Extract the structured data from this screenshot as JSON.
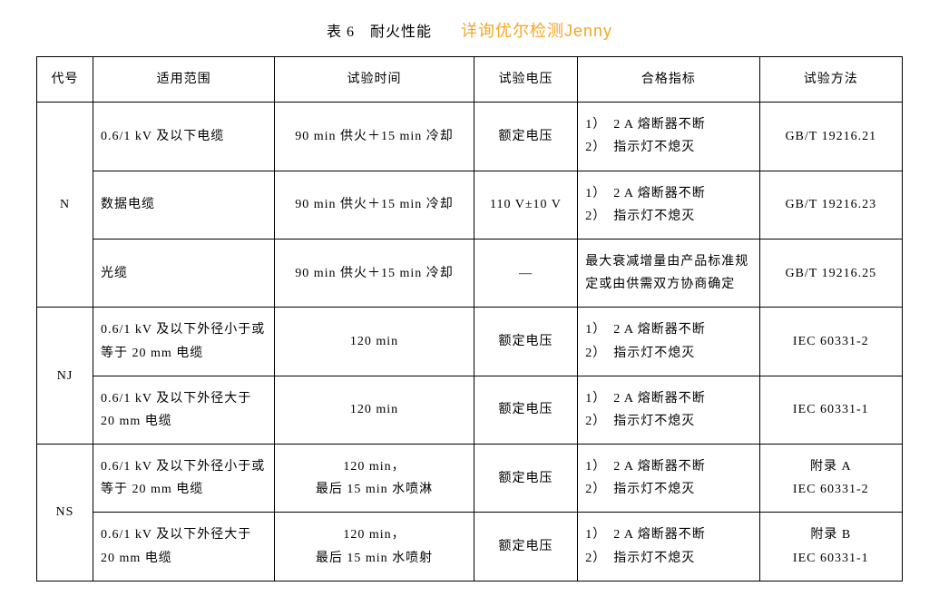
{
  "title": {
    "prefix": "表 6",
    "text": "耐火性能",
    "note": "详询优尔检测Jenny",
    "note_color": "#f5a623"
  },
  "headers": {
    "code": "代号",
    "scope": "适用范围",
    "time": "试验时间",
    "voltage": "试验电压",
    "criteria": "合格指标",
    "method": "试验方法"
  },
  "criteria_common": {
    "line1": "1）　2 A 熔断器不断",
    "line2": "2）　指示灯不熄灭"
  },
  "groups": [
    {
      "code": "N",
      "rows": [
        {
          "scope": "0.6/1 kV 及以下电缆",
          "time": "90 min 供火＋15 min 冷却",
          "voltage": "额定电压",
          "criteria": [
            "1）　2 A 熔断器不断",
            "2）　指示灯不熄灭"
          ],
          "method": "GB/T 19216.21"
        },
        {
          "scope": "数据电缆",
          "time": "90 min 供火＋15 min 冷却",
          "voltage": "110 V±10 V",
          "criteria": [
            "1）　2 A 熔断器不断",
            "2）　指示灯不熄灭"
          ],
          "method": "GB/T 19216.23"
        },
        {
          "scope": "光缆",
          "time": "90 min 供火＋15 min 冷却",
          "voltage": "—",
          "criteria": [
            "最大衰减增量由产品标准规定或由供需双方协商确定"
          ],
          "method": "GB/T 19216.25"
        }
      ]
    },
    {
      "code": "NJ",
      "rows": [
        {
          "scope": "0.6/1 kV 及以下外径小于或等于 20 mm 电缆",
          "time": "120 min",
          "voltage": "额定电压",
          "criteria": [
            "1）　2 A 熔断器不断",
            "2）　指示灯不熄灭"
          ],
          "method": "IEC 60331-2"
        },
        {
          "scope": "0.6/1 kV 及以下外径大于 20 mm 电缆",
          "time": "120 min",
          "voltage": "额定电压",
          "criteria": [
            "1）　2 A 熔断器不断",
            "2）　指示灯不熄灭"
          ],
          "method": "IEC 60331-1"
        }
      ]
    },
    {
      "code": "NS",
      "rows": [
        {
          "scope": "0.6/1 kV 及以下外径小于或等于 20 mm 电缆",
          "time": "120 min，\n最后 15 min 水喷淋",
          "voltage": "额定电压",
          "criteria": [
            "1）　2 A 熔断器不断",
            "2）　指示灯不熄灭"
          ],
          "method": "附录 A\nIEC 60331-2"
        },
        {
          "scope": "0.6/1 kV 及以下外径大于 20 mm 电缆",
          "time": "120 min，\n最后 15 min 水喷射",
          "voltage": "额定电压",
          "criteria": [
            "1）　2 A 熔断器不断",
            "2）　指示灯不熄灭"
          ],
          "method": "附录 B\nIEC 60331-1"
        }
      ]
    }
  ],
  "style": {
    "background": "#ffffff",
    "text_color": "#000000",
    "border_color": "#000000",
    "font_family_body": "SimSun",
    "font_family_note": "Microsoft YaHei",
    "font_size_cell": 14,
    "font_size_title": 16,
    "font_size_note": 18,
    "letter_spacing": 1,
    "line_height": 1.8
  }
}
